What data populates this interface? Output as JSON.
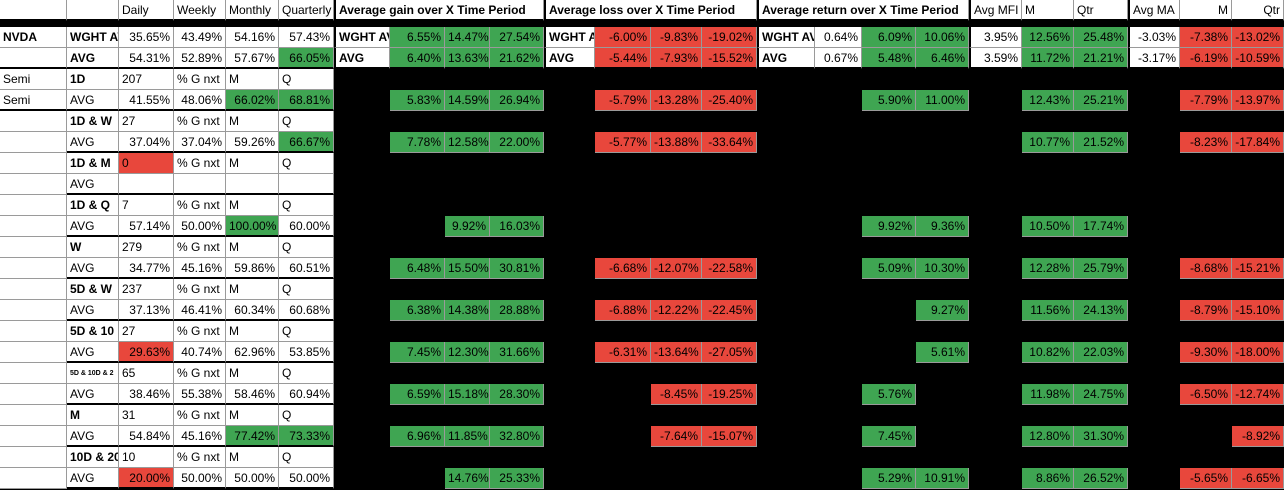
{
  "headers": {
    "daily": "Daily",
    "weekly": "Weekly",
    "monthly": "Monthly",
    "quarterly": "Quarterly",
    "gain_title": "Average gain over X Time Period",
    "loss_title": "Average loss over X Time Period",
    "return_title": "Average return over X Time Period",
    "avg_mfi": "Avg MFI",
    "m": "M",
    "qtr": "Qtr",
    "avg_ma": "Avg MA",
    "m2": "M",
    "qtr2": "Qtr"
  },
  "ticker": "NVDA",
  "top_rows": [
    {
      "label": "WGHT AVG",
      "daily": "35.65%",
      "weekly": "43.49%",
      "monthly": "54.16%",
      "quarterly": "57.43%",
      "gain_label": "WGHT AVG",
      "gain": [
        "6.55%",
        "14.47%",
        "27.54%"
      ],
      "loss_label": "WGHT AVG",
      "loss": [
        "-6.00%",
        "-9.83%",
        "-19.02%"
      ],
      "ret_label": "WGHT AVG",
      "ret": [
        "0.64%",
        "6.09%",
        "10.06%"
      ],
      "mfi": [
        "3.95%",
        "12.56%",
        "25.48%"
      ],
      "ma": [
        "-3.03%",
        "-7.38%",
        "-13.02%"
      ]
    },
    {
      "label": "AVG",
      "daily": "54.31%",
      "weekly": "52.89%",
      "monthly": "57.67%",
      "quarterly": "66.05%",
      "gain_label": "AVG",
      "gain": [
        "6.40%",
        "13.63%",
        "21.62%"
      ],
      "loss_label": "AVG",
      "loss": [
        "-5.44%",
        "-7.93%",
        "-15.52%"
      ],
      "ret_label": "AVG",
      "ret": [
        "0.67%",
        "5.48%",
        "6.46%"
      ],
      "mfi": [
        "3.59%",
        "11.72%",
        "21.21%"
      ],
      "ma": [
        "-3.17%",
        "-6.19%",
        "-10.59%"
      ]
    }
  ],
  "sector_labels": [
    "Semi",
    "Semi"
  ],
  "groups": [
    {
      "name": "1D",
      "count": "207",
      "g_nxt": "% G nxt",
      "m": "M",
      "q": "Q",
      "avg": {
        "label": "AVG",
        "daily": "41.55%",
        "weekly": "48.06%",
        "monthly": "66.02%",
        "quarterly": "68.81%",
        "gain": [
          "5.83%",
          "14.59%",
          "26.94%"
        ],
        "loss": [
          "-5.79%",
          "-13.28%",
          "-25.40%"
        ],
        "ret": [
          "",
          "5.90%",
          "11.00%"
        ],
        "mfi": [
          "",
          "12.43%",
          "25.21%"
        ],
        "ma": [
          "",
          "-7.79%",
          "-13.97%"
        ]
      }
    },
    {
      "name": "1D & W",
      "count": "27",
      "g_nxt": "% G nxt",
      "m": "M",
      "q": "Q",
      "avg": {
        "label": "AVG",
        "daily": "37.04%",
        "weekly": "37.04%",
        "monthly": "59.26%",
        "quarterly": "66.67%",
        "gain": [
          "7.78%",
          "12.58%",
          "22.00%"
        ],
        "loss": [
          "-5.77%",
          "-13.88%",
          "-33.64%"
        ],
        "ret": [
          "",
          "",
          ""
        ],
        "mfi": [
          "",
          "10.77%",
          "21.52%"
        ],
        "ma": [
          "",
          "-8.23%",
          "-17.84%"
        ]
      }
    },
    {
      "name": "1D & M",
      "count": "0",
      "g_nxt": "% G nxt",
      "m": "M",
      "q": "Q",
      "avg": {
        "label": "AVG",
        "daily": "",
        "weekly": "",
        "monthly": "",
        "quarterly": "",
        "gain": [
          "",
          "",
          ""
        ],
        "loss": [
          "",
          "",
          ""
        ],
        "ret": [
          "",
          "",
          ""
        ],
        "mfi": [
          "",
          "",
          ""
        ],
        "ma": [
          "",
          "",
          ""
        ]
      }
    },
    {
      "name": "1D & Q",
      "count": "7",
      "g_nxt": "% G nxt",
      "m": "M",
      "q": "Q",
      "avg": {
        "label": "AVG",
        "daily": "57.14%",
        "weekly": "50.00%",
        "monthly": "100.00%",
        "quarterly": "60.00%",
        "gain": [
          "",
          "9.92%",
          "16.03%"
        ],
        "loss": [
          "",
          "",
          ""
        ],
        "ret": [
          "",
          "9.92%",
          "9.36%"
        ],
        "mfi": [
          "",
          "10.50%",
          "17.74%"
        ],
        "ma": [
          "",
          "",
          ""
        ]
      }
    },
    {
      "name": "W",
      "count": "279",
      "g_nxt": "% G nxt",
      "m": "M",
      "q": "Q",
      "avg": {
        "label": "AVG",
        "daily": "34.77%",
        "weekly": "45.16%",
        "monthly": "59.86%",
        "quarterly": "60.51%",
        "gain": [
          "6.48%",
          "15.50%",
          "30.81%"
        ],
        "loss": [
          "-6.68%",
          "-12.07%",
          "-22.58%"
        ],
        "ret": [
          "",
          "5.09%",
          "10.30%"
        ],
        "mfi": [
          "",
          "12.28%",
          "25.79%"
        ],
        "ma": [
          "",
          "-8.68%",
          "-15.21%"
        ]
      }
    },
    {
      "name": "5D & W",
      "count": "237",
      "g_nxt": "% G nxt",
      "m": "M",
      "q": "Q",
      "avg": {
        "label": "AVG",
        "daily": "37.13%",
        "weekly": "46.41%",
        "monthly": "60.34%",
        "quarterly": "60.68%",
        "gain": [
          "6.38%",
          "14.38%",
          "28.88%"
        ],
        "loss": [
          "-6.88%",
          "-12.22%",
          "-22.45%"
        ],
        "ret": [
          "",
          "",
          "9.27%"
        ],
        "mfi": [
          "",
          "11.56%",
          "24.13%"
        ],
        "ma": [
          "",
          "-8.79%",
          "-15.10%"
        ]
      }
    },
    {
      "name": "5D & 10",
      "count": "27",
      "g_nxt": "% G nxt",
      "m": "M",
      "q": "Q",
      "avg": {
        "label": "AVG",
        "daily": "29.63%",
        "weekly": "40.74%",
        "monthly": "62.96%",
        "quarterly": "53.85%",
        "gain": [
          "7.45%",
          "12.30%",
          "31.66%"
        ],
        "loss": [
          "-6.31%",
          "-13.64%",
          "-27.05%"
        ],
        "ret": [
          "",
          "",
          "5.61%"
        ],
        "mfi": [
          "",
          "10.82%",
          "22.03%"
        ],
        "ma": [
          "",
          "-9.30%",
          "-18.00%"
        ]
      }
    },
    {
      "name": "5D & 10D & 2",
      "count": "65",
      "g_nxt": "% G nxt",
      "m": "M",
      "q": "Q",
      "avg": {
        "label": "AVG",
        "daily": "38.46%",
        "weekly": "55.38%",
        "monthly": "58.46%",
        "quarterly": "60.94%",
        "gain": [
          "6.59%",
          "15.18%",
          "28.30%"
        ],
        "loss": [
          "",
          "-8.45%",
          "-19.25%"
        ],
        "ret": [
          "",
          "5.76%",
          ""
        ],
        "mfi": [
          "",
          "11.98%",
          "24.75%"
        ],
        "ma": [
          "",
          "-6.50%",
          "-12.74%"
        ]
      }
    },
    {
      "name": "M",
      "count": "31",
      "g_nxt": "% G nxt",
      "m": "M",
      "q": "Q",
      "avg": {
        "label": "AVG",
        "daily": "54.84%",
        "weekly": "45.16%",
        "monthly": "77.42%",
        "quarterly": "73.33%",
        "gain": [
          "6.96%",
          "11.85%",
          "32.80%"
        ],
        "loss": [
          "",
          "-7.64%",
          "-15.07%"
        ],
        "ret": [
          "",
          "7.45%",
          ""
        ],
        "mfi": [
          "",
          "12.80%",
          "31.30%"
        ],
        "ma": [
          "",
          "",
          "-8.92%"
        ]
      }
    },
    {
      "name": "10D & 20",
      "count": "10",
      "g_nxt": "% G nxt",
      "m": "M",
      "q": "Q",
      "avg": {
        "label": "AVG",
        "daily": "20.00%",
        "weekly": "50.00%",
        "monthly": "50.00%",
        "quarterly": "50.00%",
        "gain": [
          "",
          "14.76%",
          "25.33%"
        ],
        "loss": [
          "",
          "",
          ""
        ],
        "ret": [
          "",
          "5.29%",
          "10.91%"
        ],
        "mfi": [
          "",
          "8.86%",
          "26.52%"
        ],
        "ma": [
          "",
          "-5.65%",
          "-6.65%"
        ]
      }
    }
  ],
  "colors": {
    "green": "#3fa552",
    "red": "#e8473c",
    "black": "#000000",
    "white": "#ffffff"
  }
}
